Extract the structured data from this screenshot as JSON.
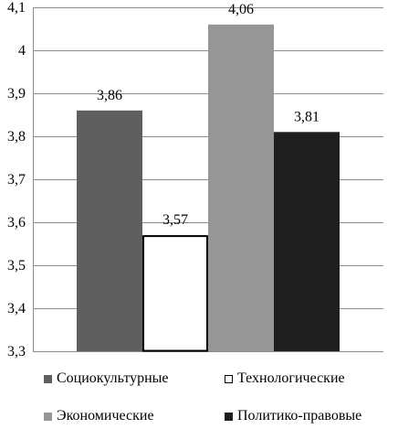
{
  "chart_data": {
    "type": "bar",
    "categories": [
      "Социокультурные",
      "Технологические",
      "Экономические",
      "Политико-правовые"
    ],
    "values": [
      3.86,
      3.57,
      4.06,
      3.81
    ],
    "data_labels": [
      "3,86",
      "3,57",
      "4,06",
      "3,81"
    ],
    "colors": [
      "#5f5f5f",
      "#ffffff",
      "#969696",
      "#1e1e1e"
    ],
    "ylim": [
      3.3,
      4.1
    ],
    "yticks": [
      3.3,
      3.4,
      3.5,
      3.6,
      3.7,
      3.8,
      3.9,
      4.0,
      4.1
    ],
    "ytick_labels": [
      "3,3",
      "3,4",
      "3,5",
      "3,6",
      "3,7",
      "3,8",
      "3,9",
      "4",
      "4,1"
    ],
    "grid": true,
    "legend_position": "bottom",
    "title": "",
    "xlabel": "",
    "ylabel": ""
  },
  "legend": {
    "items": [
      "Социокультурные",
      "Технологические",
      "Экономические",
      "Политико-правовые"
    ]
  }
}
